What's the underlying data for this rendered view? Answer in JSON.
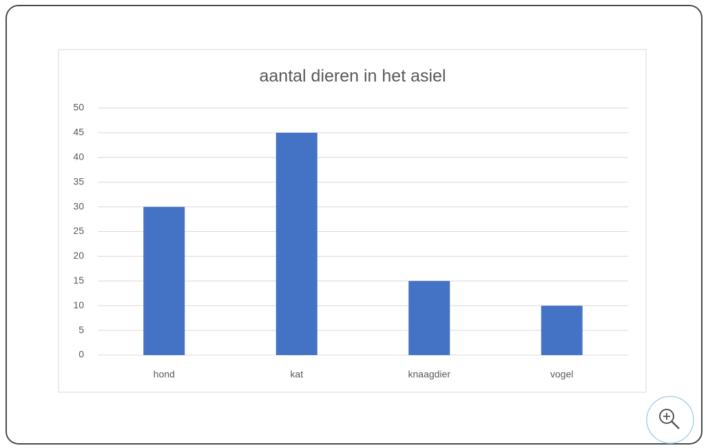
{
  "chart_data": {
    "type": "bar",
    "title": "aantal dieren in het asiel",
    "categories": [
      "hond",
      "kat",
      "knaagdier",
      "vogel"
    ],
    "values": [
      30,
      45,
      15,
      10
    ],
    "color": "#4472c4",
    "ylim": [
      0,
      50
    ],
    "yticks": [
      0,
      5,
      10,
      15,
      20,
      25,
      30,
      35,
      40,
      45,
      50
    ],
    "grid": true
  }
}
